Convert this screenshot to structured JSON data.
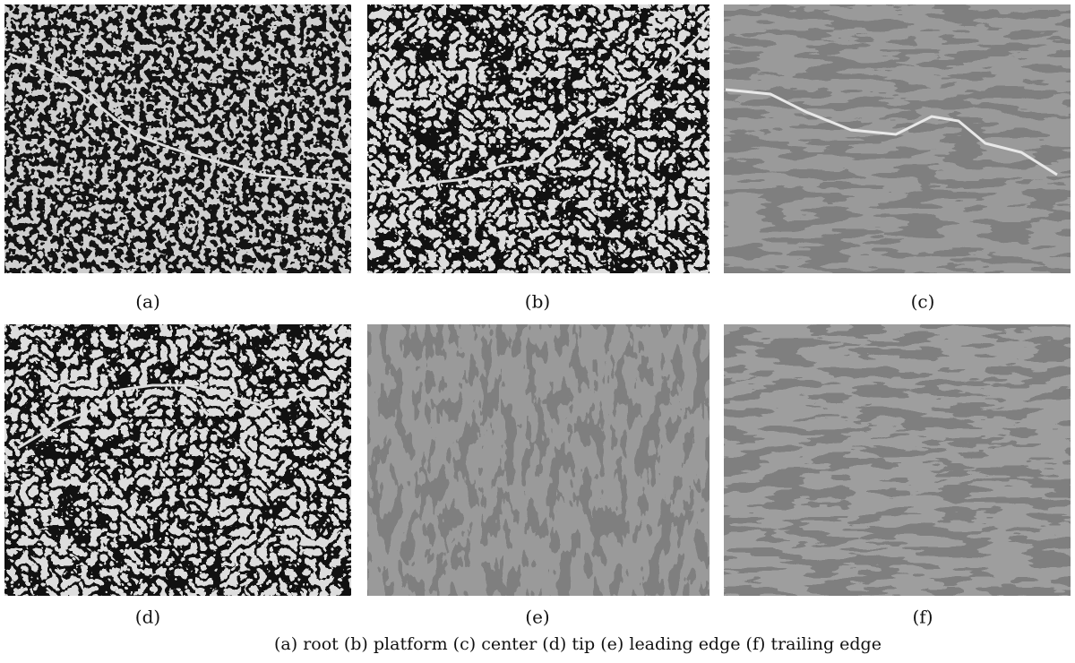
{
  "figure": {
    "panels": [
      {
        "label": "(a)"
      },
      {
        "label": "(b)"
      },
      {
        "label": "(c)"
      },
      {
        "label": "(d)"
      },
      {
        "label": "(e)"
      },
      {
        "label": "(f)"
      }
    ],
    "caption": "(a) root (b) platform (c) center (d) tip (e) leading edge (f) trailing edge"
  }
}
